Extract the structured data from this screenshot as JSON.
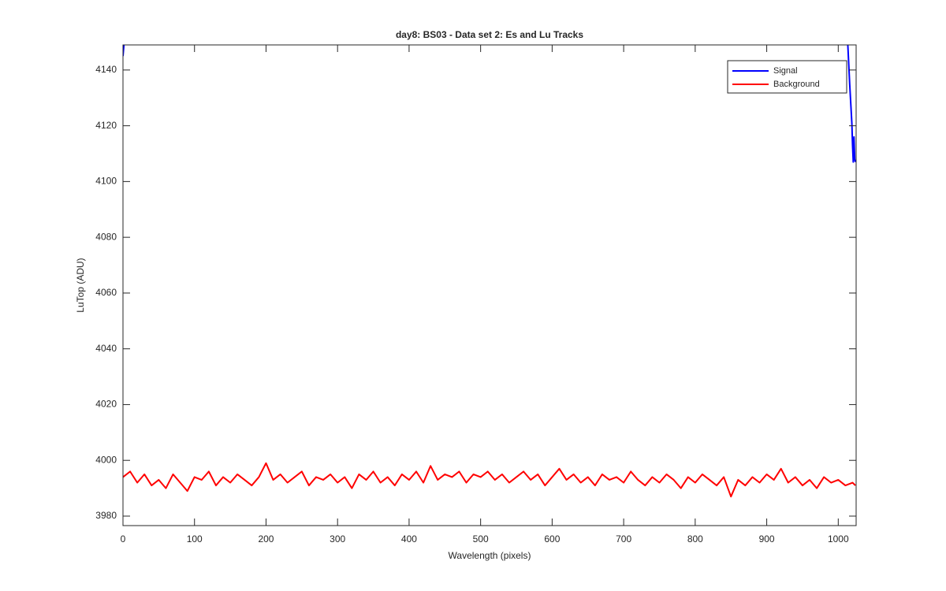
{
  "chart_data": {
    "type": "line",
    "title": "day8: BS03 - Data set 2: Es and Lu Tracks",
    "x_label": "Wavelength (pixels)",
    "y_label": "LuTop (ADU)",
    "xlim": [
      0,
      1025
    ],
    "ylim": [
      3976.6,
      4149
    ],
    "xticks": [
      0,
      100,
      200,
      300,
      400,
      500,
      600,
      700,
      800,
      900,
      1000
    ],
    "yticks": [
      3980,
      4000,
      4020,
      4040,
      4060,
      4080,
      4100,
      4120,
      4140
    ],
    "legend": "top-right",
    "series": [
      {
        "name": "Signal",
        "color": "#0000ff",
        "x": [
          0,
          1,
          2,
          500,
          1013,
          1016,
          1019,
          1020,
          1021,
          1022,
          1023,
          1024
        ],
        "values": [
          4145,
          4148,
          4151,
          null,
          4151,
          4135,
          4121,
          4113,
          4107,
          4116,
          4108,
          4107
        ]
      },
      {
        "name": "Background",
        "color": "#ff0000",
        "x": [
          0,
          10,
          20,
          30,
          40,
          50,
          60,
          70,
          80,
          90,
          100,
          110,
          120,
          130,
          140,
          150,
          160,
          170,
          180,
          190,
          200,
          210,
          220,
          230,
          240,
          250,
          260,
          270,
          280,
          290,
          300,
          310,
          320,
          330,
          340,
          350,
          360,
          370,
          380,
          390,
          400,
          410,
          420,
          430,
          440,
          450,
          460,
          470,
          480,
          490,
          500,
          510,
          520,
          530,
          540,
          550,
          560,
          570,
          580,
          590,
          600,
          610,
          620,
          630,
          640,
          650,
          660,
          670,
          680,
          690,
          700,
          710,
          720,
          730,
          740,
          750,
          760,
          770,
          780,
          790,
          800,
          810,
          820,
          830,
          840,
          850,
          860,
          870,
          880,
          890,
          900,
          910,
          920,
          930,
          940,
          950,
          960,
          970,
          980,
          990,
          1000,
          1010,
          1020,
          1024
        ],
        "values": [
          3994,
          3996,
          3992,
          3995,
          3991,
          3993,
          3990,
          3995,
          3992,
          3989,
          3994,
          3993,
          3996,
          3991,
          3994,
          3992,
          3995,
          3993,
          3991,
          3994,
          3999,
          3993,
          3995,
          3992,
          3994,
          3996,
          3991,
          3994,
          3993,
          3995,
          3992,
          3994,
          3990,
          3995,
          3993,
          3996,
          3992,
          3994,
          3991,
          3995,
          3993,
          3996,
          3992,
          3998,
          3993,
          3995,
          3994,
          3996,
          3992,
          3995,
          3994,
          3996,
          3993,
          3995,
          3992,
          3994,
          3996,
          3993,
          3995,
          3991,
          3994,
          3997,
          3993,
          3995,
          3992,
          3994,
          3991,
          3995,
          3993,
          3994,
          3992,
          3996,
          3993,
          3991,
          3994,
          3992,
          3995,
          3993,
          3990,
          3994,
          3992,
          3995,
          3993,
          3991,
          3994,
          3987,
          3993,
          3991,
          3994,
          3992,
          3995,
          3993,
          3997,
          3992,
          3994,
          3991,
          3993,
          3990,
          3994,
          3992,
          3993,
          3991,
          3992,
          3991
        ]
      }
    ]
  }
}
